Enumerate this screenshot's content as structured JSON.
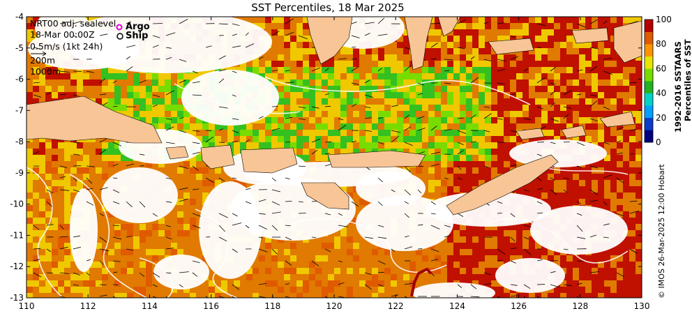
{
  "title": "SST Percentiles, 18 Mar 2025",
  "map_legend": {
    "product": "NRT00 adj. sealevel",
    "time": "18-Mar 00:00Z",
    "current_scale": "0.5m/s (1kt 24h)",
    "contour_1": "200m",
    "contour_2": "1000m",
    "argo_label": "Argo",
    "ship_label": "Ship",
    "argo_color": "#e000e0"
  },
  "axes": {
    "x_ticks": [
      "110",
      "112",
      "114",
      "116",
      "118",
      "120",
      "122",
      "124",
      "126",
      "128",
      "130"
    ],
    "y_ticks": [
      "-4",
      "-5",
      "-6",
      "-7",
      "-8",
      "-9",
      "-10",
      "-11",
      "-12",
      "-13"
    ],
    "x_range": [
      110,
      130
    ],
    "y_range": [
      -13,
      -4
    ]
  },
  "colorbar": {
    "ticks": [
      "100",
      "80",
      "60",
      "40",
      "20",
      "0"
    ],
    "title_line1": "1992-2016 SSTAARS",
    "title_line2": "Percentiles of SST",
    "colors": [
      "#000080",
      "#0a3cc8",
      "#00a0ff",
      "#00d2c8",
      "#22b422",
      "#78dc00",
      "#e6e600",
      "#ff9600",
      "#e05a00",
      "#b40000"
    ]
  },
  "credit": "© IMOS 26-Mar-2025 12:00 Hobart",
  "palette": {
    "land": "#f8c596",
    "red": "#c01000",
    "orange": "#e07a00",
    "yellow": "#f0c800",
    "green": "#34c020"
  }
}
